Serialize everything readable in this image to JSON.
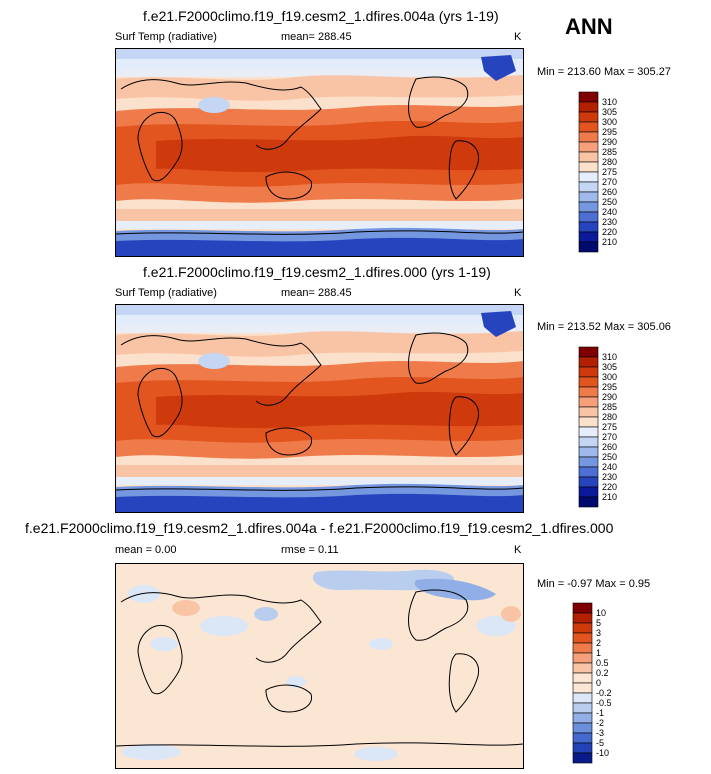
{
  "season": "ANN",
  "panels": [
    {
      "title": "f.e21.F2000climo.f19_f19.cesm2_1.dfires.004a (yrs 1-19)",
      "left_label": "Surf Temp (radiative)",
      "stat_label": "mean=",
      "stat_value": "288.45",
      "units": "K",
      "minmax": "Min = 213.60 Max = 305.27",
      "levels": [
        "310",
        "305",
        "300",
        "295",
        "290",
        "285",
        "280",
        "275",
        "270",
        "260",
        "250",
        "240",
        "230",
        "220",
        "210"
      ]
    },
    {
      "title": "f.e21.F2000climo.f19_f19.cesm2_1.dfires.000 (yrs 1-19)",
      "left_label": "Surf Temp (radiative)",
      "stat_label": "mean=",
      "stat_value": "288.45",
      "units": "K",
      "minmax": "Min = 213.52 Max = 305.06",
      "levels": [
        "310",
        "305",
        "300",
        "295",
        "290",
        "285",
        "280",
        "275",
        "270",
        "260",
        "250",
        "240",
        "230",
        "220",
        "210"
      ]
    },
    {
      "title": "f.e21.F2000climo.f19_f19.cesm2_1.dfires.004a - f.e21.F2000climo.f19_f19.cesm2_1.dfires.000",
      "left_label": "mean =   0.00",
      "stat_label": "rmse =",
      "stat_value": "0.11",
      "units": "K",
      "minmax": "Min =  -0.97 Max =   0.95",
      "levels": [
        "10",
        "5",
        "3",
        "2",
        "1",
        "0.5",
        "0.2",
        "0",
        "-0.2",
        "-0.5",
        "-1",
        "-2",
        "-3",
        "-5",
        "-10"
      ]
    }
  ],
  "colors": {
    "abs_scale": [
      "#7f0000",
      "#b22000",
      "#cf3a0d",
      "#e2551f",
      "#ef7b4a",
      "#f5a07a",
      "#f9c4a6",
      "#fbe0cc",
      "#e6eefb",
      "#c4d6f4",
      "#9fb9ec",
      "#7597e0",
      "#4d6fd3",
      "#2744bf",
      "#0a1a9a",
      "#000a6e"
    ],
    "diff_scale": [
      "#7f0000",
      "#b22000",
      "#cf3a0d",
      "#e2551f",
      "#ef7b4a",
      "#f5a07a",
      "#f9c4a6",
      "#fbe6d4",
      "#fbe6d4",
      "#dbe6f7",
      "#b9cdef",
      "#91afe6",
      "#6a8fdc",
      "#4469cf",
      "#2242b8",
      "#0a1a8a"
    ]
  }
}
